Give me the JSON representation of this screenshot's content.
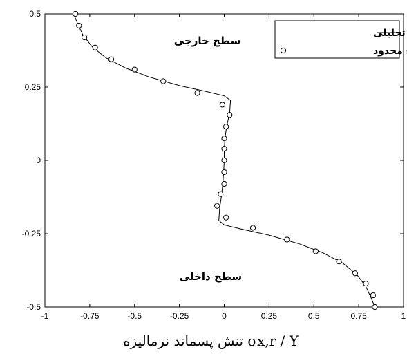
{
  "chart_data": {
    "type": "line",
    "xlim": [
      -1,
      1
    ],
    "ylim": [
      -0.5,
      0.5
    ],
    "xticks": [
      "-1",
      "-0.75",
      "-0.5",
      "-0.25",
      "0",
      "0.25",
      "0.5",
      "0.75",
      "1"
    ],
    "yticks": [
      "0.5",
      "0.25",
      "0",
      "-0.25",
      "-0.5"
    ],
    "xlabel": "تنش پسماند نرمالیزه σx,r / Y",
    "grid": false,
    "legend_position": "top-right",
    "annotations": {
      "outer_surface": "سطح خارجی",
      "inner_surface": "سطح داخلی"
    },
    "series": [
      {
        "name": "حل تحلیلی",
        "style": "line",
        "color": "#000000",
        "points": [
          [
            -0.84,
            0.5
          ],
          [
            -0.82,
            0.47
          ],
          [
            -0.79,
            0.43
          ],
          [
            -0.74,
            0.39
          ],
          [
            -0.66,
            0.35
          ],
          [
            -0.55,
            0.315
          ],
          [
            -0.42,
            0.285
          ],
          [
            -0.25,
            0.255
          ],
          [
            -0.1,
            0.235
          ],
          [
            0.0,
            0.22
          ],
          [
            0.035,
            0.205
          ],
          [
            0.03,
            0.16
          ],
          [
            0.015,
            0.12
          ],
          [
            0.005,
            0.08
          ],
          [
            0.0,
            0.04
          ],
          [
            0.0,
            0.0
          ],
          [
            -0.003,
            -0.04
          ],
          [
            -0.008,
            -0.08
          ],
          [
            -0.015,
            -0.12
          ],
          [
            -0.025,
            -0.16
          ],
          [
            -0.03,
            -0.205
          ],
          [
            0.0,
            -0.22
          ],
          [
            0.1,
            -0.235
          ],
          [
            0.25,
            -0.255
          ],
          [
            0.42,
            -0.285
          ],
          [
            0.55,
            -0.315
          ],
          [
            0.66,
            -0.35
          ],
          [
            0.74,
            -0.39
          ],
          [
            0.79,
            -0.43
          ],
          [
            0.82,
            -0.47
          ],
          [
            0.84,
            -0.5
          ]
        ]
      },
      {
        "name": "حل اجزاء محدود",
        "style": "marker",
        "marker": "circle",
        "color": "#000000",
        "points": [
          [
            -0.83,
            0.5
          ],
          [
            -0.81,
            0.46
          ],
          [
            -0.78,
            0.42
          ],
          [
            -0.72,
            0.385
          ],
          [
            -0.63,
            0.345
          ],
          [
            -0.5,
            0.31
          ],
          [
            -0.34,
            0.27
          ],
          [
            -0.15,
            0.23
          ],
          [
            -0.01,
            0.19
          ],
          [
            0.03,
            0.155
          ],
          [
            0.01,
            0.115
          ],
          [
            0.0,
            0.075
          ],
          [
            0.0,
            0.04
          ],
          [
            0.0,
            0.0
          ],
          [
            0.0,
            -0.04
          ],
          [
            0.0,
            -0.08
          ],
          [
            -0.02,
            -0.115
          ],
          [
            -0.04,
            -0.155
          ],
          [
            0.01,
            -0.195
          ],
          [
            0.16,
            -0.23
          ],
          [
            0.35,
            -0.27
          ],
          [
            0.51,
            -0.31
          ],
          [
            0.64,
            -0.345
          ],
          [
            0.73,
            -0.385
          ],
          [
            0.79,
            -0.42
          ],
          [
            0.83,
            -0.46
          ],
          [
            0.84,
            -0.5
          ]
        ]
      }
    ]
  }
}
